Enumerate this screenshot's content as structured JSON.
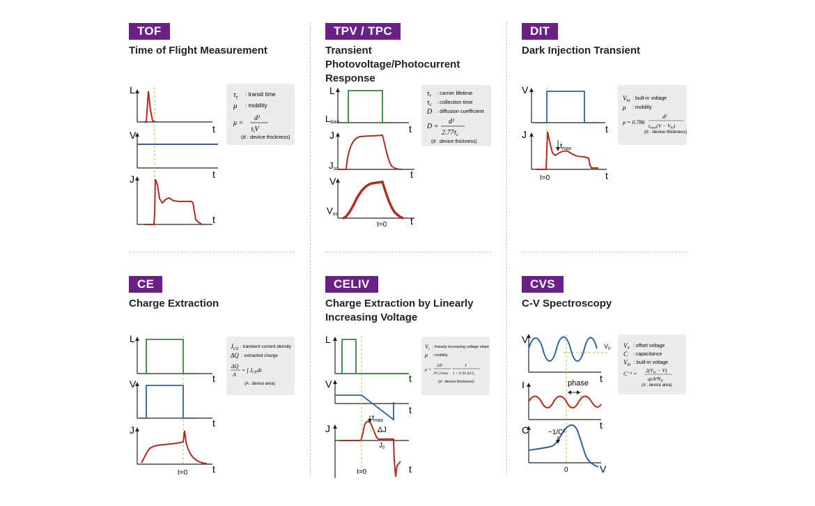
{
  "panels": {
    "tof": {
      "tag": "TOF",
      "title": "Time of Flight Measurement",
      "axis_labels": {
        "L": "L",
        "V": "V",
        "J": "J",
        "t1": "t",
        "t2": "t",
        "t3": "t"
      },
      "legend": [
        {
          "sym": "τ",
          "sub": "t",
          "text": ": transit time"
        },
        {
          "sym": "μ",
          "sub": "",
          "text": ": mobility"
        }
      ],
      "formula": {
        "lhs": "μ =",
        "num": "d²",
        "den": "τ",
        "den_sub": "t",
        "den_tail": "V"
      },
      "note": "(d : device thickness)"
    },
    "tpv": {
      "tag": "TPV / TPC",
      "title_line1": "Transient Photovoltage/Photocurrent",
      "title_line2": "Response",
      "axis_labels": {
        "L": "L",
        "L_sub": "bias",
        "J": "J",
        "J_sub": "sc",
        "V": "V",
        "V_sub": "oc",
        "t1": "t",
        "t2": "t",
        "t3": "t",
        "t0": "t=0"
      },
      "legend": [
        {
          "sym": "τ",
          "sub": "r",
          "text": ": carrier lifetime"
        },
        {
          "sym": "τ",
          "sub": "c",
          "text": ": collection time"
        },
        {
          "sym": "D",
          "sub": "",
          "text": ": diffusion coefficient"
        }
      ],
      "formula": {
        "lhs": "D =",
        "num": "d²",
        "den": "2.77τ",
        "den_sub": "c"
      },
      "note": "(d : device thickness)"
    },
    "dit": {
      "tag": "DIT",
      "title": "Dark Injection Transient",
      "axis_labels": {
        "V": "V",
        "J": "J",
        "t1": "t",
        "t2": "t",
        "t0": "t=0",
        "tmax": "t",
        "tmax_sub": "max"
      },
      "legend": [
        {
          "sym": "V",
          "sub": "bi",
          "text": ": built-in voltage"
        },
        {
          "sym": "μ",
          "sub": "",
          "text": ": mobility"
        }
      ],
      "formula": {
        "lhs": "μ = 0.786",
        "num": "d²",
        "den": "t",
        "den_sub": "max",
        "den_tail": "(V − V",
        "den_tail_sub": "bi",
        "den_close": ")"
      },
      "note": "(d : device thickness)"
    },
    "ce": {
      "tag": "CE",
      "title": "Charge Extraction",
      "axis_labels": {
        "L": "L",
        "V": "V",
        "J": "J",
        "t1": "t",
        "t2": "t",
        "t3": "t",
        "t0": "t=0"
      },
      "legend": [
        {
          "sym": "J",
          "sub": "CE",
          "text": ": transient current density"
        },
        {
          "sym": "ΔQ",
          "sub": "",
          "text": ": extracted charge"
        }
      ],
      "formula": {
        "num": "ΔQ",
        "den": "A",
        "rhs": "= ∫ J",
        "rhs_sub": "CE",
        "rhs_tail": "dt"
      },
      "note": "(A : device area)"
    },
    "celiv": {
      "tag": "CELIV",
      "title_line1": "Charge Extraction by Linearly",
      "title_line2": "Increasing Voltage",
      "axis_labels": {
        "L": "L",
        "V": "V",
        "J": "J",
        "t1": "t",
        "t2": "t",
        "t3": "t",
        "t0": "t=0",
        "tmax": "t",
        "tmax_sub": "max",
        "dJ": "ΔJ",
        "J0": "J",
        "J0_sub": "0"
      },
      "legend": [
        {
          "sym": "V",
          "sub": "r",
          "text": ": linearly increasing voltage slope"
        },
        {
          "sym": "μ",
          "sub": "",
          "text": ": mobility"
        }
      ],
      "formula": {
        "lhs": "μ =",
        "num": "2d²",
        "den": "3V'",
        "den_sub": "r",
        "den_tail": "t²max",
        "num2": "1",
        "den2": "1 + 0.36 ΔJ/J₀"
      },
      "note": "(d : device thickness)"
    },
    "cvs": {
      "tag": "CVS",
      "title": "C-V Spectroscopy",
      "axis_labels": {
        "V": "V",
        "I": "I",
        "C": "C",
        "t1": "t",
        "t2": "t",
        "zero": "0",
        "Vx": "V",
        "Vx_sub": "0",
        "phase": "phase",
        "slope": "~1/C²",
        "V_axis": "V"
      },
      "legend": [
        {
          "sym": "V",
          "sub": "0",
          "text": ": offset voltage"
        },
        {
          "sym": "C",
          "sub": "",
          "text": ": capacitance"
        },
        {
          "sym": "V",
          "sub": "bi",
          "text": ": built-in voltage"
        }
      ],
      "formula": {
        "lhs": "C⁻² =",
        "num": "2(V",
        "num_sub": "bi",
        "num_tail": " − V)",
        "den": "qεA²N",
        "den_sub": "A"
      },
      "note": "(A : device area)"
    }
  },
  "colors": {
    "badge": "#6a2185",
    "red": "#b42a1c",
    "green": "#2f8a3b",
    "blue": "#2e62a0",
    "guide": "#a9c432",
    "legend_bg": "#ececec"
  }
}
